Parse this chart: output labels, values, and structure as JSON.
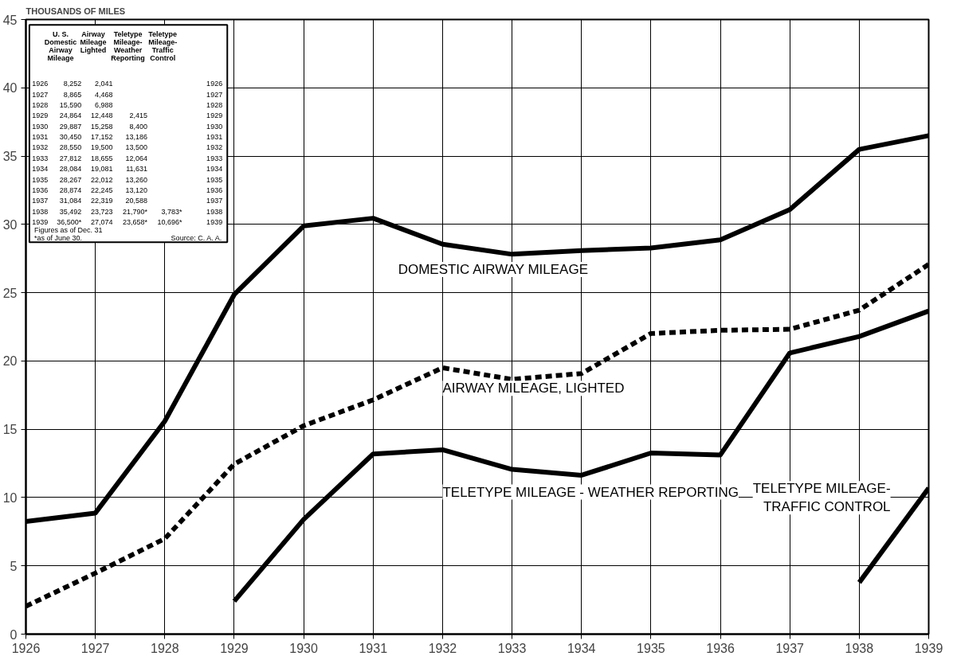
{
  "chart_data": {
    "type": "line",
    "ylabel": "THOUSANDS OF MILES",
    "x": [
      1926,
      1927,
      1928,
      1929,
      1930,
      1931,
      1932,
      1933,
      1934,
      1935,
      1936,
      1937,
      1938,
      1939
    ],
    "xlim": [
      1926,
      1939
    ],
    "xticks": [
      1926,
      1927,
      1928,
      1929,
      1930,
      1931,
      1932,
      1933,
      1934,
      1935,
      1936,
      1937,
      1938,
      1939
    ],
    "ylim": [
      0,
      45
    ],
    "yticks": [
      0,
      5,
      10,
      15,
      20,
      25,
      30,
      35,
      40,
      45
    ],
    "grid": true,
    "series": [
      {
        "name": "DOMESTIC AIRWAY MILEAGE",
        "color": "#000000",
        "line_style": "solid",
        "values": [
          8.252,
          8.865,
          15.59,
          24.864,
          29.887,
          30.45,
          28.55,
          27.812,
          28.084,
          28.267,
          28.874,
          31.084,
          35.492,
          36.5
        ]
      },
      {
        "name": "AIRWAY MILEAGE, LIGHTED",
        "color": "#000000",
        "line_style": "dashed",
        "values": [
          2.041,
          4.468,
          6.988,
          12.448,
          15.258,
          17.152,
          19.5,
          18.655,
          19.081,
          22.012,
          22.245,
          22.319,
          23.723,
          27.074
        ]
      },
      {
        "name": "TELETYPE MILEAGE - WEATHER REPORTING",
        "color": "#000000",
        "line_style": "solid",
        "values": [
          null,
          null,
          null,
          2.415,
          8.4,
          13.186,
          13.5,
          12.064,
          11.631,
          13.26,
          13.12,
          20.588,
          21.79,
          23.658
        ]
      },
      {
        "name": "TELETYPE MILEAGE-\nTRAFFIC CONTROL",
        "color": "#000000",
        "line_style": "solid",
        "values": [
          null,
          null,
          null,
          null,
          null,
          null,
          null,
          null,
          null,
          null,
          null,
          null,
          3.783,
          10.696
        ]
      }
    ],
    "annotations": [
      "U. S.\nDomestic\nAirway\nMileage",
      "Airway\nMileage\nLighted",
      "Teletype\nMileage-\nWeather\nReporting",
      "Teletype\nMileage-\nTraffic\nControl",
      "1926\t8,252\t2,041\t\t\t1926",
      "1927\t8,865\t4,468\t\t\t1927",
      "1928\t15,590\t6,988\t\t\t1928",
      "1929\t24,864\t12,448\t2,415\t\t1929",
      "1930\t29,887\t15,258\t8,400\t\t1930",
      "1931\t30,450\t17,152\t13,186\t\t1931",
      "1932\t28,550\t19,500\t13,500\t\t1932",
      "1933\t27,812\t18,655\t12,064\t\t1933",
      "1934\t28,084\t19,081\t11,631\t\t1934",
      "1935\t28,267\t22,012\t13,260\t\t1935",
      "1936\t28,874\t22,245\t13,120\t\t1936",
      "1937\t31,084\t22,319\t20,588\t\t1937",
      "1938\t35,492\t23,723\t21,790*\t3,783*\t1938",
      "1939\t36,500*\t27,074\t23,658*\t10,696*\t1939",
      "Figures as of Dec. 31",
      "*as of June 30.",
      "Source: C. A. A."
    ]
  }
}
